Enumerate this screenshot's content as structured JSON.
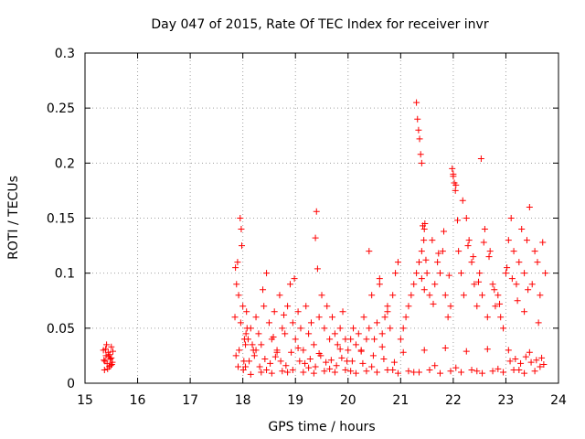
{
  "chart_data": {
    "type": "scatter",
    "title": "Day 047 of 2015, Rate Of TEC Index for receiver invr",
    "xlabel": "GPS time / hours",
    "ylabel": "ROTI / TECUs",
    "xlim": [
      15,
      24
    ],
    "ylim": [
      0,
      0.3
    ],
    "xticks": [
      "15",
      "16",
      "17",
      "18",
      "19",
      "20",
      "21",
      "22",
      "23",
      "24"
    ],
    "yticks": [
      "0",
      "0.05",
      "0.1",
      "0.15",
      "0.2",
      "0.25",
      "0.3"
    ],
    "grid": true,
    "marker": "+",
    "color": "#ff0000",
    "series": [
      {
        "name": "ROTI",
        "x": [
          15.35,
          15.38,
          15.4,
          15.42,
          15.44,
          15.46,
          15.48,
          15.5,
          15.52,
          15.37,
          15.41,
          15.45,
          15.49,
          15.53,
          15.36,
          15.43,
          15.47,
          15.51,
          15.39,
          15.5,
          17.85,
          17.88,
          17.9,
          17.92,
          17.95,
          17.98,
          18.0,
          18.03,
          18.05,
          18.08,
          17.87,
          17.93,
          17.97,
          18.02,
          18.06,
          17.86,
          17.91,
          17.96,
          18.01,
          18.07,
          18.1,
          18.15,
          18.2,
          18.25,
          18.3,
          18.35,
          18.4,
          18.45,
          18.5,
          18.55,
          18.6,
          18.65,
          18.7,
          18.75,
          18.8,
          18.85,
          18.9,
          18.95,
          18.12,
          18.22,
          18.32,
          18.42,
          18.52,
          18.62,
          18.72,
          18.82,
          18.92,
          18.18,
          18.38,
          18.58,
          18.78,
          18.98,
          19.0,
          19.05,
          19.1,
          19.15,
          19.2,
          19.25,
          19.3,
          19.35,
          19.4,
          19.45,
          19.5,
          19.55,
          19.6,
          19.65,
          19.7,
          19.75,
          19.8,
          19.85,
          19.9,
          19.95,
          19.08,
          19.18,
          19.28,
          19.38,
          19.48,
          19.58,
          19.68,
          19.78,
          19.88,
          19.98,
          19.38,
          19.42,
          20.0,
          20.05,
          20.1,
          20.15,
          20.2,
          20.25,
          20.3,
          20.35,
          20.4,
          20.45,
          20.5,
          20.55,
          20.6,
          20.65,
          20.7,
          20.75,
          20.8,
          20.85,
          20.9,
          20.95,
          20.08,
          20.28,
          20.48,
          20.68,
          20.88,
          20.4,
          20.6,
          20.75,
          21.0,
          21.05,
          21.1,
          21.15,
          21.2,
          21.25,
          21.3,
          21.35,
          21.4,
          21.45,
          21.5,
          21.55,
          21.6,
          21.65,
          21.7,
          21.75,
          21.8,
          21.85,
          21.9,
          21.95,
          21.3,
          21.32,
          21.34,
          21.36,
          21.38,
          21.4,
          21.42,
          21.44,
          21.46,
          21.48,
          21.4,
          21.45,
          21.62,
          21.72,
          21.82,
          21.92,
          22.0,
          22.05,
          22.1,
          22.15,
          22.2,
          22.25,
          22.3,
          22.35,
          22.4,
          22.45,
          22.5,
          22.55,
          22.6,
          22.65,
          22.7,
          22.75,
          22.8,
          22.85,
          22.9,
          22.95,
          21.98,
          22.0,
          22.02,
          22.04,
          22.08,
          22.18,
          22.28,
          22.38,
          22.53,
          22.48,
          22.58,
          22.68,
          22.78,
          22.88,
          23.0,
          23.05,
          23.1,
          23.15,
          23.2,
          23.25,
          23.3,
          23.35,
          23.4,
          23.45,
          23.5,
          23.55,
          23.6,
          23.65,
          23.7,
          23.75,
          23.08,
          23.18,
          23.28,
          23.38,
          23.48,
          23.58,
          23.68,
          23.72,
          23.22,
          23.35,
          23.42,
          23.62,
          23.12,
          23.02,
          18.05,
          18.45,
          18.85,
          19.25,
          19.65,
          20.05,
          20.45,
          20.85,
          21.25,
          21.65,
          22.05,
          22.45,
          22.85,
          23.25,
          23.65,
          18.25,
          18.65,
          19.05,
          19.45,
          19.85,
          20.25,
          20.65,
          21.05,
          21.45,
          21.85,
          22.25,
          22.65,
          23.05,
          23.45,
          18.15,
          18.35,
          18.55,
          18.75,
          18.95,
          19.15,
          19.35,
          19.55,
          19.75,
          19.95,
          20.15,
          20.35,
          20.55,
          20.75,
          20.95,
          21.15,
          21.35,
          21.55,
          21.75,
          21.95,
          22.15,
          22.35,
          22.55,
          22.75,
          22.95,
          23.15,
          23.35,
          23.55
        ],
        "y": [
          0.03,
          0.02,
          0.025,
          0.018,
          0.028,
          0.015,
          0.022,
          0.033,
          0.019,
          0.012,
          0.035,
          0.024,
          0.016,
          0.029,
          0.021,
          0.013,
          0.026,
          0.017,
          0.031,
          0.023,
          0.06,
          0.09,
          0.11,
          0.08,
          0.15,
          0.125,
          0.07,
          0.04,
          0.035,
          0.05,
          0.025,
          0.03,
          0.14,
          0.02,
          0.045,
          0.105,
          0.015,
          0.055,
          0.012,
          0.065,
          0.04,
          0.05,
          0.03,
          0.06,
          0.045,
          0.035,
          0.07,
          0.1,
          0.055,
          0.04,
          0.065,
          0.03,
          0.08,
          0.05,
          0.045,
          0.07,
          0.09,
          0.055,
          0.02,
          0.025,
          0.015,
          0.022,
          0.018,
          0.024,
          0.02,
          0.016,
          0.028,
          0.035,
          0.085,
          0.042,
          0.062,
          0.095,
          0.04,
          0.065,
          0.05,
          0.03,
          0.07,
          0.045,
          0.055,
          0.035,
          0.156,
          0.06,
          0.08,
          0.05,
          0.07,
          0.04,
          0.06,
          0.045,
          0.035,
          0.05,
          0.065,
          0.04,
          0.02,
          0.018,
          0.022,
          0.015,
          0.025,
          0.019,
          0.021,
          0.016,
          0.023,
          0.02,
          0.132,
          0.104,
          0.03,
          0.04,
          0.05,
          0.035,
          0.045,
          0.03,
          0.06,
          0.04,
          0.05,
          0.08,
          0.04,
          0.055,
          0.09,
          0.045,
          0.06,
          0.07,
          0.05,
          0.08,
          0.1,
          0.11,
          0.02,
          0.018,
          0.025,
          0.022,
          0.019,
          0.12,
          0.095,
          0.065,
          0.04,
          0.05,
          0.06,
          0.07,
          0.08,
          0.09,
          0.1,
          0.11,
          0.12,
          0.14,
          0.1,
          0.08,
          0.13,
          0.09,
          0.11,
          0.1,
          0.12,
          0.08,
          0.06,
          0.07,
          0.255,
          0.24,
          0.23,
          0.222,
          0.208,
          0.2,
          0.143,
          0.13,
          0.145,
          0.112,
          0.095,
          0.085,
          0.072,
          0.118,
          0.138,
          0.098,
          0.19,
          0.18,
          0.12,
          0.1,
          0.08,
          0.15,
          0.13,
          0.11,
          0.09,
          0.07,
          0.1,
          0.08,
          0.14,
          0.06,
          0.12,
          0.09,
          0.07,
          0.08,
          0.06,
          0.05,
          0.195,
          0.188,
          0.182,
          0.175,
          0.148,
          0.166,
          0.125,
          0.115,
          0.204,
          0.092,
          0.128,
          0.115,
          0.085,
          0.072,
          0.1,
          0.13,
          0.15,
          0.12,
          0.09,
          0.11,
          0.14,
          0.1,
          0.13,
          0.16,
          0.09,
          0.12,
          0.11,
          0.08,
          0.128,
          0.1,
          0.02,
          0.022,
          0.018,
          0.024,
          0.019,
          0.021,
          0.023,
          0.017,
          0.075,
          0.065,
          0.085,
          0.055,
          0.095,
          0.105,
          0.015,
          0.012,
          0.01,
          0.014,
          0.013,
          0.011,
          0.015,
          0.012,
          0.01,
          0.016,
          0.014,
          0.011,
          0.013,
          0.012,
          0.015,
          0.03,
          0.028,
          0.032,
          0.027,
          0.031,
          0.029,
          0.033,
          0.028,
          0.03,
          0.032,
          0.029,
          0.031,
          0.03,
          0.028,
          0.008,
          0.01,
          0.009,
          0.011,
          0.012,
          0.01,
          0.009,
          0.011,
          0.01,
          0.012,
          0.009,
          0.011,
          0.01,
          0.012,
          0.009,
          0.011,
          0.01,
          0.012,
          0.009,
          0.011,
          0.01,
          0.012,
          0.009,
          0.011,
          0.01,
          0.012,
          0.009,
          0.011
        ]
      }
    ]
  }
}
